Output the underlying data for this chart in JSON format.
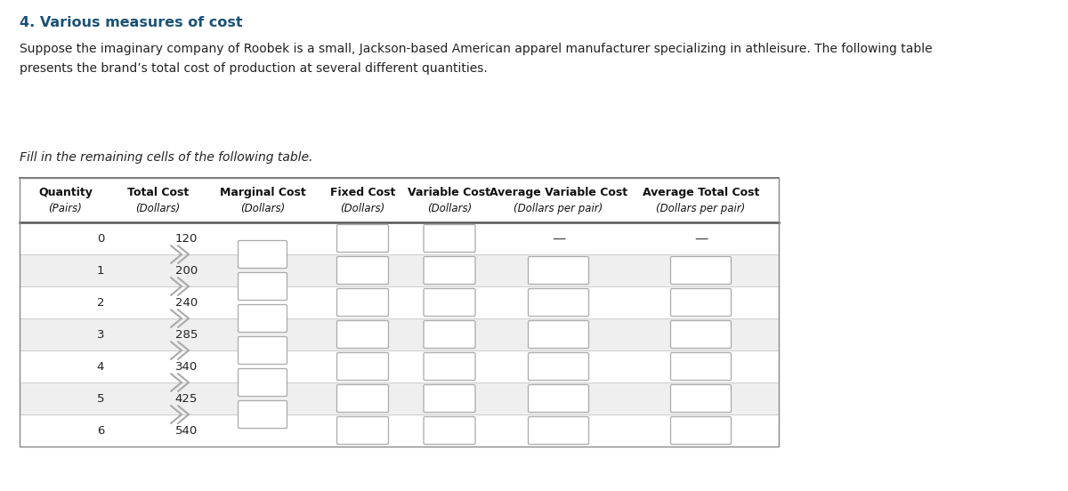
{
  "title": "4. Various measures of cost",
  "title_color": "#1a5276",
  "paragraph1": "Suppose the imaginary company of Roobek is a small, Jackson-based American apparel manufacturer specializing in athleisure. The following table",
  "paragraph2": "presents the brand’s total cost of production at several different quantities.",
  "instruction": "Fill in the remaining cells of the following table.",
  "bg_color": "#ffffff",
  "table_header_row1": [
    "Quantity",
    "Total Cost",
    "Marginal Cost",
    "Fixed Cost",
    "Variable Cost",
    "Average Variable Cost",
    "Average Total Cost"
  ],
  "table_header_row2": [
    "(Pairs)",
    "(Dollars)",
    "(Dollars)",
    "(Dollars)",
    "(Dollars)",
    "(Dollars per pair)",
    "(Dollars per pair)"
  ],
  "quantities": [
    0,
    1,
    2,
    3,
    4,
    5,
    6
  ],
  "total_costs": [
    120,
    200,
    240,
    285,
    340,
    425,
    540
  ],
  "row_bg_odd": "#efefef",
  "row_bg_even": "#ffffff",
  "table_border_color": "#888888",
  "header_line_color": "#555555",
  "input_box_color": "#ffffff",
  "input_box_border": "#aaaaaa",
  "arrow_color": "#aaaaaa",
  "dash_color": "#444444",
  "text_color": "#222222"
}
